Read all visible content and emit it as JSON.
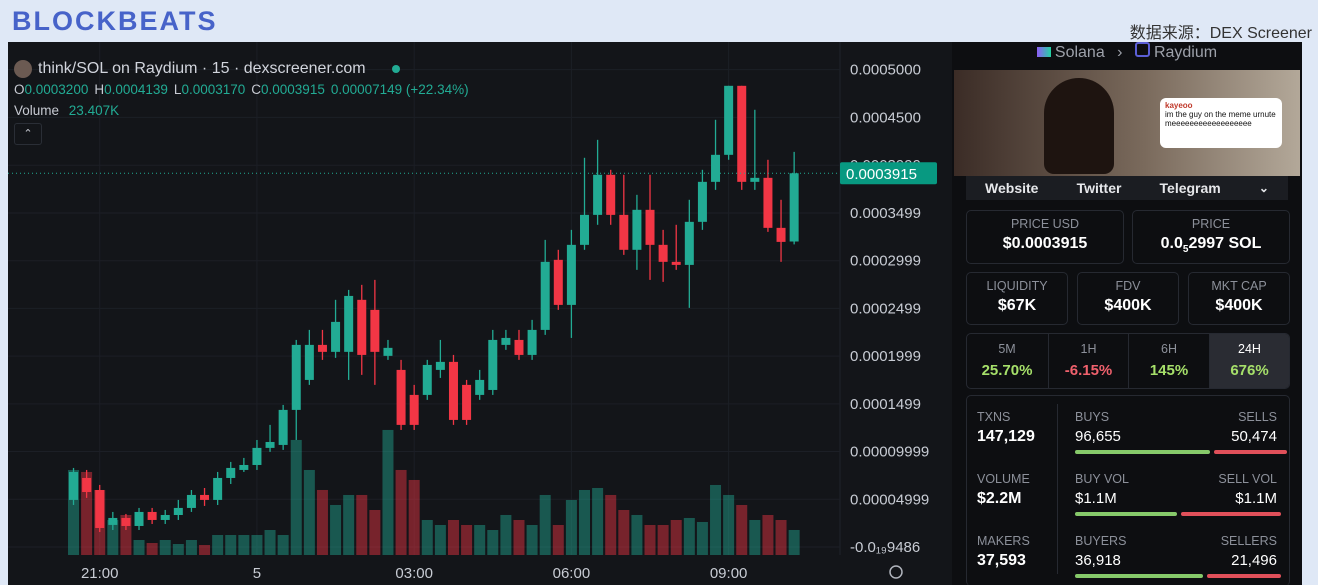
{
  "header": {
    "logo": "BLOCKBEATS",
    "source": "数据来源：DEX Screener"
  },
  "chart_data": {
    "type": "candlestick",
    "title": "think/SOL on Raydium · 15 · dexscreener.com",
    "ohlc": [
      {
        "key": "O",
        "value": "0.0003200"
      },
      {
        "key": "H",
        "value": "0.0004139"
      },
      {
        "key": "L",
        "value": "0.0003170"
      },
      {
        "key": "C",
        "value": "0.0003915"
      }
    ],
    "change": "0.00007149 (+22.34%)",
    "volume_label": "Volume",
    "volume_value": "23.407K",
    "open": [
      4.93e-05,
      7.23e-05,
      5.97e-05,
      2.31e-05,
      3.04e-05,
      2.2e-05,
      3.67e-05,
      2.83e-05,
      3.35e-05,
      4.09e-05,
      5.45e-05,
      4.93e-05,
      7.23e-05,
      8.07e-05,
      8.59e-05,
      0.0001038,
      0.0001069,
      0.0001436,
      0.000175,
      0.0002117,
      0.0002044,
      0.0002044,
      0.0002589,
      0.0002484,
      0.0002002,
      0.0001855,
      0.0001593,
      0.0001593,
      0.0001855,
      0.0001939,
      0.0001698,
      0.0001593,
      0.0001645,
      0.0002117,
      0.0002169,
      0.0002012,
      0.0002274,
      0.0003008,
      0.0002536,
      0.0003165,
      0.0003479,
      0.0003899,
      0.0003479,
      0.0003113,
      0.0003532,
      0.0003165,
      0.0002987,
      0.0002955,
      0.0003406,
      0.0003825,
      0.0004108,
      0.0004831,
      0.0003825,
      0.0003867,
      0.0003343,
      0.00032
    ],
    "high": [
      8.28e-05,
      8.07e-05,
      6.5e-05,
      3.67e-05,
      3.46e-05,
      4.09e-05,
      4.09e-05,
      3.88e-05,
      4.93e-05,
      5.97e-05,
      6.18e-05,
      7.86e-05,
      8.91e-05,
      9.33e-05,
      0.0001121,
      0.0001279,
      0.0001488,
      0.0002169,
      0.0002274,
      0.0002274,
      0.0002589,
      0.0002693,
      0.0002746,
      0.0002798,
      0.0002169,
      0.000196,
      0.0001698,
      0.000196,
      0.0002169,
      0.0002012,
      0.000175,
      0.0001855,
      0.0002274,
      0.0002274,
      0.0002274,
      0.0002379,
      0.0003217,
      0.0003113,
      0.0003322,
      0.0004077,
      0.0004265,
      0.0003951,
      0.0003899,
      0.0003689,
      0.0003899,
      0.0003322,
      0.0003375,
      0.0003637,
      0.0003951,
      0.0004475,
      0.0004831,
      0.0004831,
      0.000458,
      0.0004056,
      0.0003637,
      0.0004139
    ],
    "low": [
      4.4e-05,
      5.14e-05,
      1.57e-05,
      1.78e-05,
      1.78e-05,
      1.78e-05,
      2.41e-05,
      2.41e-05,
      2.83e-05,
      3.67e-05,
      4.3e-05,
      4.4e-05,
      6.6e-05,
      7.86e-05,
      8.07e-05,
      9.96e-05,
      0.0001017,
      0.0001121,
      0.0001698,
      0.000196,
      0.0001981,
      0.000175,
      0.0001803,
      0.0001698,
      0.000196,
      0.0001226,
      0.0001226,
      0.0001541,
      0.0001771,
      0.0001279,
      0.0001279,
      0.0001541,
      0.0001593,
      0.0002065,
      0.000196,
      0.000196,
      0.0002222,
      0.0002484,
      0.000219,
      0.0003113,
      0.0003375,
      0.0003375,
      0.000306,
      0.0002903,
      0.0002798,
      0.0002777,
      0.0002903,
      0.0002505,
      0.0003322,
      0.0003741,
      0.0004056,
      0.0003741,
      0.0003741,
      0.0003301,
      0.0002987,
      0.000317
    ],
    "close": [
      7.86e-05,
      5.76e-05,
      1.99e-05,
      3.04e-05,
      2.2e-05,
      3.67e-05,
      2.83e-05,
      3.35e-05,
      4.09e-05,
      5.45e-05,
      4.93e-05,
      7.23e-05,
      8.28e-05,
      8.59e-05,
      0.0001038,
      0.00011,
      0.0001436,
      0.0002117,
      0.0002117,
      0.0002044,
      0.0002358,
      0.000263,
      0.0002012,
      0.0002044,
      0.0002086,
      0.0001279,
      0.0001279,
      0.0001907,
      0.0001939,
      0.0001331,
      0.0001331,
      0.000175,
      0.0002169,
      0.000219,
      0.0002012,
      0.0002274,
      0.0002987,
      0.0002536,
      0.0003165,
      0.0003479,
      0.0003899,
      0.0003479,
      0.0003113,
      0.0003532,
      0.0003165,
      0.0002987,
      0.0002955,
      0.0003406,
      0.0003825,
      0.0004108,
      0.0004831,
      0.0003825,
      0.0003867,
      0.0003343,
      0.0003196,
      0.0003915
    ],
    "volume": [
      79560,
      77688,
      60840,
      32760,
      37440,
      14040,
      11232,
      14040,
      10296,
      14040,
      9360,
      18720,
      18720,
      18720,
      18720,
      23400,
      18720,
      107640,
      79560,
      60840,
      46800,
      56160,
      56160,
      42120,
      117000,
      79560,
      70200,
      32760,
      28080,
      32760,
      28080,
      28080,
      23400,
      37440,
      32760,
      28080,
      56160,
      28080,
      51480,
      60840,
      62712,
      56160,
      42120,
      37440,
      28080,
      28080,
      32760,
      34632,
      30888,
      65520,
      56160,
      46800,
      32760,
      37440,
      32760,
      23407
    ],
    "up_color": "#22ab94",
    "down_color": "#f23645",
    "ylim": [
      -8.4e-06,
      0.000529
    ],
    "yticks": [
      {
        "value": 0.0005,
        "label": "0.0005000"
      },
      {
        "value": 0.00045,
        "label": "0.0004500"
      },
      {
        "value": 0.0003999,
        "label": "0.0003999"
      },
      {
        "value": 0.0003499,
        "label": "0.0003499"
      },
      {
        "value": 0.0002999,
        "label": "0.0002999"
      },
      {
        "value": 0.0002499,
        "label": "0.0002499"
      },
      {
        "value": 0.0001999,
        "label": "0.0001999"
      },
      {
        "value": 0.0001499,
        "label": "0.0001499"
      },
      {
        "value": 9.999e-05,
        "label": "0.00009999"
      },
      {
        "value": 4.999e-05,
        "label": "0.00004999"
      },
      {
        "value": -9.486e-20,
        "label": "-0.0₁₉9486"
      }
    ],
    "xlim": [
      -5,
      58.5
    ],
    "xticks": [
      {
        "value": 2,
        "label": "21:00"
      },
      {
        "value": 14,
        "label": "5"
      },
      {
        "value": 26,
        "label": "03:00"
      },
      {
        "value": 38,
        "label": "06:00"
      },
      {
        "value": 50,
        "label": "09:00"
      }
    ],
    "volume_lim": [
      0,
      480000
    ],
    "grid": true
  },
  "panel": {
    "chain": "Solana",
    "dex": "Raydium",
    "meme": {
      "user": "kayeoo",
      "text": "im the guy on the meme urnute meeeeeeeeeeeeeeeeee"
    },
    "links": [
      "Website",
      "Twitter",
      "Telegram"
    ],
    "price_usd": {
      "label": "PRICE USD",
      "value": "$0.0003915"
    },
    "price_sol": {
      "label": "PRICE",
      "prefix": "0.0",
      "sub": "5",
      "rest": "2997 SOL"
    },
    "metrics": [
      {
        "label": "LIQUIDITY",
        "value": "$67K"
      },
      {
        "label": "FDV",
        "value": "$400K"
      },
      {
        "label": "MKT CAP",
        "value": "$400K"
      }
    ],
    "periods": [
      {
        "label": "5M",
        "value": "25.70%"
      },
      {
        "label": "1H",
        "value": "-6.15%"
      },
      {
        "label": "6H",
        "value": "145%"
      },
      {
        "label": "24H",
        "value": "676%"
      }
    ],
    "stats": [
      [
        {
          "label": "TXNS",
          "value": "147,129"
        },
        {
          "label": "BUYS",
          "value": "96,655"
        },
        {
          "label": "SELLS",
          "value": "50,474"
        }
      ],
      [
        {
          "label": "VOLUME",
          "value": "$2.2M"
        },
        {
          "label": "BUY VOL",
          "value": "$1.1M"
        },
        {
          "label": "SELL VOL",
          "value": "$1.1M"
        }
      ],
      [
        {
          "label": "MAKERS",
          "value": "37,593"
        },
        {
          "label": "BUYERS",
          "value": "36,918"
        },
        {
          "label": "SELLERS",
          "value": "21,496"
        }
      ]
    ]
  }
}
